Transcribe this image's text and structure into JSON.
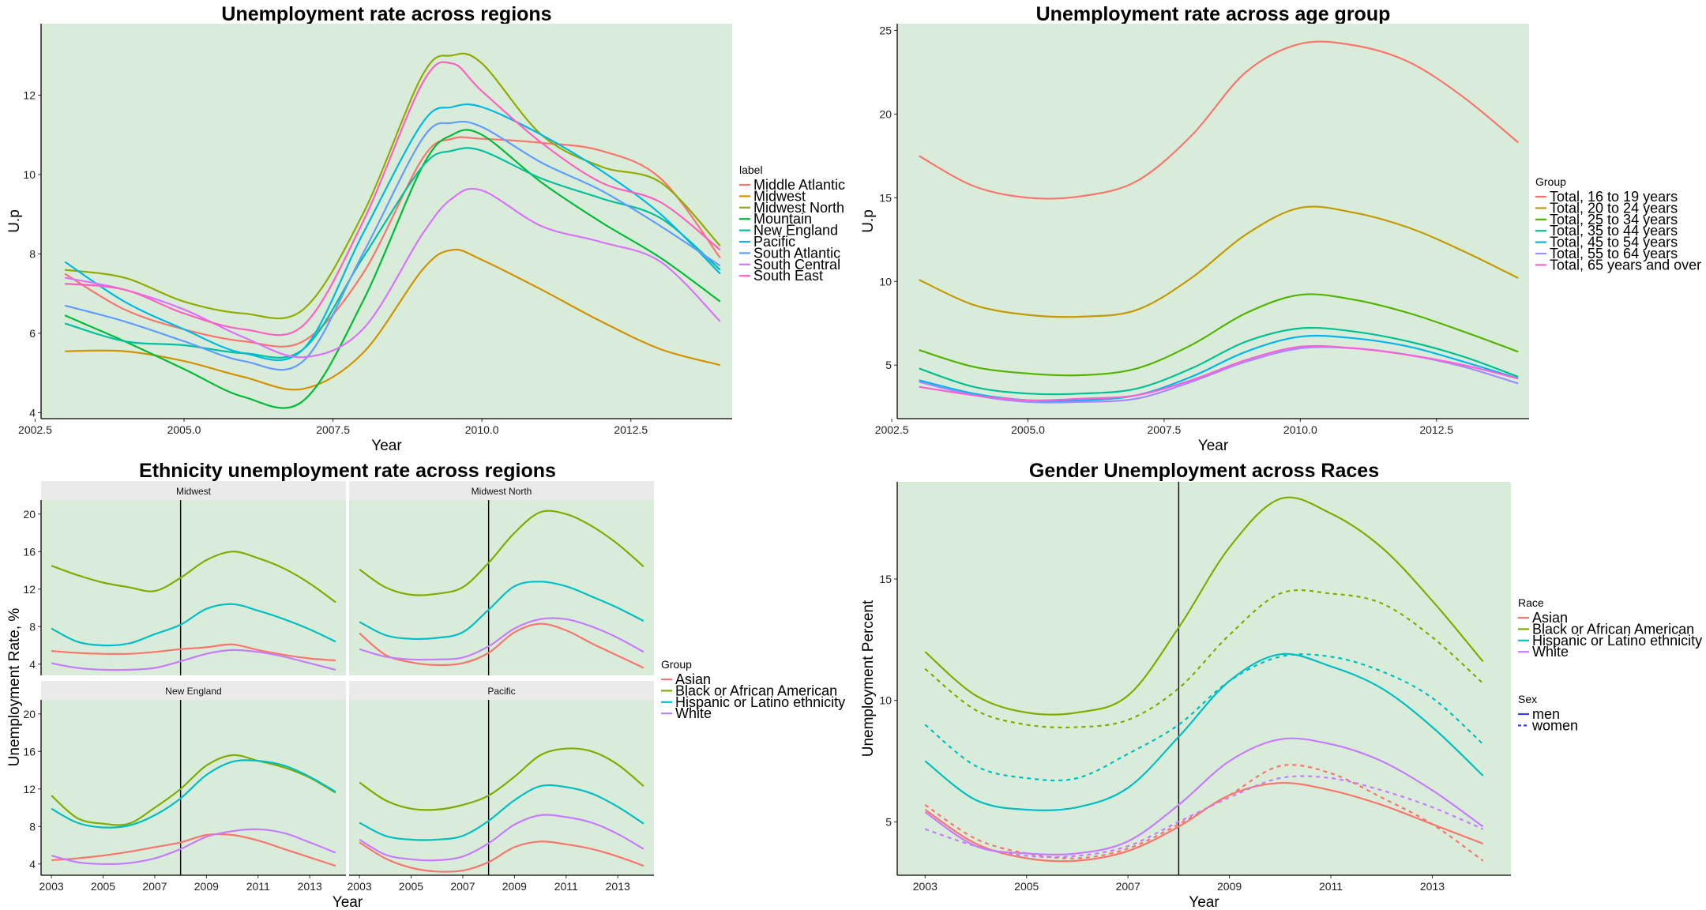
{
  "chart_data": [
    {
      "type": "line",
      "title": "Unemployment rate across regions",
      "xlabel": "Year",
      "ylabel": "U.p",
      "xlim": [
        2002.6,
        2014.2
      ],
      "ylim": [
        3.85,
        13.8
      ],
      "xticks": [
        "2002.5",
        "2005.0",
        "2007.5",
        "2010.0",
        "2012.5"
      ],
      "xtick_values": [
        2002.5,
        2005,
        2007.5,
        2010,
        2012.5
      ],
      "yticks": [
        "4",
        "6",
        "8",
        "10",
        "12"
      ],
      "ytick_values": [
        4,
        6,
        8,
        10,
        12
      ],
      "legend_title": "label",
      "legend_position": "right",
      "background": "#d9ecd9",
      "x": [
        2003,
        2004,
        2005,
        2006,
        2007,
        2008,
        2009,
        2009.5,
        2010,
        2011,
        2012,
        2013,
        2014
      ],
      "series": [
        {
          "name": "Middle Atlantic",
          "color": "#f8766d",
          "values": [
            7.5,
            6.6,
            6.1,
            5.8,
            5.8,
            7.5,
            10.4,
            10.9,
            10.9,
            10.8,
            10.6,
            9.9,
            7.9
          ]
        },
        {
          "name": "Midwest",
          "color": "#d39200",
          "values": [
            5.55,
            5.55,
            5.3,
            4.9,
            4.6,
            5.5,
            7.6,
            8.1,
            7.85,
            7.1,
            6.3,
            5.6,
            5.2
          ]
        },
        {
          "name": "Midwest North",
          "color": "#93aa00",
          "values": [
            7.6,
            7.4,
            6.8,
            6.5,
            6.6,
            9.0,
            12.5,
            13.0,
            12.8,
            11.0,
            10.2,
            9.8,
            8.2
          ]
        },
        {
          "name": "Mountain",
          "color": "#00ba38",
          "values": [
            6.45,
            5.8,
            5.1,
            4.4,
            4.3,
            6.8,
            10.2,
            11.0,
            11.0,
            9.8,
            8.8,
            7.9,
            6.8
          ]
        },
        {
          "name": "New England",
          "color": "#00c19f",
          "values": [
            6.25,
            5.8,
            5.7,
            5.5,
            5.6,
            7.9,
            10.2,
            10.6,
            10.6,
            9.9,
            9.4,
            8.9,
            7.6
          ]
        },
        {
          "name": "Pacific",
          "color": "#00b9e3",
          "values": [
            7.8,
            6.8,
            6.1,
            5.5,
            5.6,
            8.5,
            11.3,
            11.7,
            11.7,
            11.0,
            10.1,
            9.0,
            7.5
          ]
        },
        {
          "name": "South Atlantic",
          "color": "#619cff",
          "values": [
            6.7,
            6.3,
            5.8,
            5.3,
            5.3,
            8.0,
            10.9,
            11.3,
            11.2,
            10.3,
            9.6,
            8.7,
            7.7
          ]
        },
        {
          "name": "South Central",
          "color": "#db72fb",
          "values": [
            7.4,
            7.1,
            6.6,
            5.9,
            5.4,
            6.1,
            8.5,
            9.4,
            9.6,
            8.7,
            8.3,
            7.8,
            6.3
          ]
        },
        {
          "name": "South East",
          "color": "#ff61c3",
          "values": [
            7.25,
            7.1,
            6.5,
            6.1,
            6.2,
            8.8,
            12.3,
            12.8,
            12.1,
            10.8,
            9.8,
            9.3,
            8.1
          ]
        }
      ]
    },
    {
      "type": "line",
      "title": "Unemployment rate across age group",
      "xlabel": "Year",
      "ylabel": "U.p",
      "xlim": [
        2002.6,
        2014.2
      ],
      "ylim": [
        1.8,
        25.4
      ],
      "xticks": [
        "2002.5",
        "2005.0",
        "2007.5",
        "2010.0",
        "2012.5"
      ],
      "xtick_values": [
        2002.5,
        2005,
        2007.5,
        2010,
        2012.5
      ],
      "yticks": [
        "5",
        "10",
        "15",
        "20",
        "25"
      ],
      "ytick_values": [
        5,
        10,
        15,
        20,
        25
      ],
      "legend_title": "Group",
      "legend_position": "right",
      "background": "#d9ecd9",
      "x": [
        2003,
        2004,
        2005,
        2006,
        2007,
        2008,
        2009,
        2010,
        2011,
        2012,
        2013,
        2014
      ],
      "series": [
        {
          "name": "Total, 16 to 19 years",
          "color": "#f8766d",
          "values": [
            17.5,
            15.7,
            15.0,
            15.1,
            16.0,
            18.7,
            22.5,
            24.2,
            24.1,
            23.1,
            21.0,
            18.3
          ]
        },
        {
          "name": "Total, 20 to 24 years",
          "color": "#c49a00",
          "values": [
            10.1,
            8.6,
            8.0,
            7.9,
            8.3,
            10.2,
            12.8,
            14.4,
            14.1,
            13.2,
            11.8,
            10.2
          ]
        },
        {
          "name": "Total, 25 to 34 years",
          "color": "#53b400",
          "values": [
            5.9,
            4.9,
            4.5,
            4.4,
            4.8,
            6.2,
            8.1,
            9.2,
            8.9,
            8.1,
            7.0,
            5.8
          ]
        },
        {
          "name": "Total, 35 to 44 years",
          "color": "#00c094",
          "values": [
            4.8,
            3.7,
            3.3,
            3.3,
            3.6,
            4.8,
            6.4,
            7.2,
            7.0,
            6.4,
            5.5,
            4.3
          ]
        },
        {
          "name": "Total, 45 to 54 years",
          "color": "#00b6eb",
          "values": [
            4.1,
            3.3,
            2.9,
            2.9,
            3.2,
            4.3,
            5.8,
            6.7,
            6.6,
            6.1,
            5.2,
            4.2
          ]
        },
        {
          "name": "Total, 55 to 64 years",
          "color": "#a58aff",
          "values": [
            4.0,
            3.2,
            2.8,
            2.8,
            3.0,
            4.0,
            5.2,
            6.0,
            6.0,
            5.6,
            4.9,
            3.9
          ]
        },
        {
          "name": "Total, 65 years and over",
          "color": "#fb61d7",
          "values": [
            3.7,
            3.2,
            2.9,
            3.0,
            3.2,
            4.1,
            5.3,
            6.1,
            6.0,
            5.6,
            5.0,
            4.2
          ]
        }
      ]
    },
    {
      "type": "line",
      "title": "Ethnicity unemployment rate across regions",
      "xlabel": "Year",
      "ylabel": "Unemployment Rate, %",
      "xlim": [
        2002.6,
        2014.4
      ],
      "ylim": [
        2.8,
        21.5
      ],
      "xticks": [
        "2003",
        "2005",
        "2007",
        "2009",
        "2011",
        "2013"
      ],
      "xtick_values": [
        2003,
        2005,
        2007,
        2009,
        2011,
        2013
      ],
      "yticks": [
        "4",
        "8",
        "12",
        "16",
        "20"
      ],
      "ytick_values": [
        4,
        8,
        12,
        16,
        20
      ],
      "vline_x": 2008,
      "legend_title": "Group",
      "legend_position": "right",
      "background": "#d9ecd9",
      "x": [
        2003,
        2004,
        2005,
        2006,
        2007,
        2008,
        2009,
        2010,
        2011,
        2012,
        2013,
        2014
      ],
      "group_colors": {
        "Asian": "#f8766d",
        "Black or African American": "#7cae00",
        "Hispanic or Latino ethnicity": "#00bfc4",
        "White": "#c77cff"
      },
      "legend": [
        "Asian",
        "Black or African American",
        "Hispanic or Latino ethnicity",
        "White"
      ],
      "panels": [
        {
          "name": "Midwest",
          "series": [
            {
              "name": "Asian",
              "values": [
                5.4,
                5.2,
                5.1,
                5.1,
                5.3,
                5.6,
                5.8,
                6.1,
                5.5,
                5.0,
                4.6,
                4.4
              ]
            },
            {
              "name": "Black or African American",
              "values": [
                14.5,
                13.5,
                12.7,
                12.2,
                11.8,
                13.2,
                15.1,
                16.0,
                15.3,
                14.2,
                12.6,
                10.6
              ]
            },
            {
              "name": "Hispanic or Latino ethnicity",
              "values": [
                7.8,
                6.4,
                6.0,
                6.2,
                7.2,
                8.2,
                9.9,
                10.4,
                9.7,
                8.8,
                7.7,
                6.4
              ]
            },
            {
              "name": "White",
              "values": [
                4.1,
                3.6,
                3.4,
                3.4,
                3.6,
                4.3,
                5.1,
                5.5,
                5.3,
                4.8,
                4.1,
                3.4
              ]
            }
          ]
        },
        {
          "name": "Midwest North",
          "series": [
            {
              "name": "Asian",
              "values": [
                7.3,
                5.0,
                4.2,
                3.9,
                4.1,
                5.2,
                7.4,
                8.3,
                7.6,
                6.2,
                4.9,
                3.6
              ]
            },
            {
              "name": "Black or African American",
              "values": [
                14.1,
                12.2,
                11.4,
                11.5,
                12.2,
                14.8,
                18.0,
                20.2,
                20.0,
                18.7,
                16.8,
                14.4
              ]
            },
            {
              "name": "Hispanic or Latino ethnicity",
              "values": [
                8.5,
                7.1,
                6.7,
                6.8,
                7.4,
                9.8,
                12.3,
                12.8,
                12.3,
                11.2,
                10.0,
                8.6
              ]
            },
            {
              "name": "White",
              "values": [
                5.6,
                4.8,
                4.5,
                4.5,
                4.7,
                5.9,
                7.8,
                8.8,
                8.8,
                8.0,
                6.8,
                5.3
              ]
            }
          ]
        },
        {
          "name": "New England",
          "series": [
            {
              "name": "Asian",
              "values": [
                4.4,
                4.6,
                4.9,
                5.3,
                5.8,
                6.3,
                7.1,
                7.1,
                6.5,
                5.6,
                4.7,
                3.8
              ]
            },
            {
              "name": "Black or African American",
              "values": [
                11.3,
                8.9,
                8.3,
                8.3,
                10.0,
                12.0,
                14.5,
                15.6,
                15.0,
                14.3,
                13.2,
                11.6
              ]
            },
            {
              "name": "Hispanic or Latino ethnicity",
              "values": [
                9.9,
                8.4,
                7.9,
                8.1,
                9.2,
                11.0,
                13.5,
                14.9,
                15.0,
                14.5,
                13.3,
                11.7
              ]
            },
            {
              "name": "White",
              "values": [
                4.9,
                4.2,
                4.0,
                4.1,
                4.6,
                5.6,
                6.9,
                7.5,
                7.7,
                7.3,
                6.3,
                5.2
              ]
            }
          ]
        },
        {
          "name": "Pacific",
          "series": [
            {
              "name": "Asian",
              "values": [
                6.3,
                4.6,
                3.6,
                3.2,
                3.3,
                4.2,
                5.8,
                6.4,
                6.1,
                5.6,
                4.8,
                3.8
              ]
            },
            {
              "name": "Black or African American",
              "values": [
                12.7,
                10.8,
                9.9,
                9.8,
                10.3,
                11.3,
                13.3,
                15.6,
                16.3,
                16.0,
                14.6,
                12.3
              ]
            },
            {
              "name": "Hispanic or Latino ethnicity",
              "values": [
                8.4,
                7.0,
                6.6,
                6.6,
                7.0,
                8.6,
                10.8,
                12.3,
                12.2,
                11.5,
                10.1,
                8.3
              ]
            },
            {
              "name": "White",
              "values": [
                6.6,
                5.0,
                4.5,
                4.4,
                4.8,
                6.2,
                8.2,
                9.2,
                9.0,
                8.4,
                7.2,
                5.6
              ]
            }
          ]
        }
      ]
    },
    {
      "type": "line",
      "title": "Gender Unemployment across Races",
      "xlabel": "Year",
      "ylabel": "Unemployment Percent",
      "xlim": [
        2002.45,
        2014.55
      ],
      "ylim": [
        2.8,
        19.0
      ],
      "xticks": [
        "2003",
        "2005",
        "2007",
        "2009",
        "2011",
        "2013"
      ],
      "xtick_values": [
        2003,
        2005,
        2007,
        2009,
        2011,
        2013
      ],
      "yticks": [
        "5",
        "10",
        "15"
      ],
      "ytick_values": [
        5,
        10,
        15
      ],
      "vline_x": 2008,
      "legend_title": "Race",
      "legend2_title": "Sex",
      "legend2": [
        "men",
        "women"
      ],
      "legend_position": "right",
      "background": "#d9ecd9",
      "x": [
        2003,
        2004,
        2005,
        2006,
        2007,
        2008,
        2009,
        2010,
        2011,
        2012,
        2013,
        2014
      ],
      "series": [
        {
          "name": "Asian",
          "sex": "men",
          "color": "#f8766d",
          "values": [
            5.5,
            4.1,
            3.5,
            3.4,
            3.8,
            4.8,
            6.1,
            6.6,
            6.3,
            5.7,
            4.9,
            4.1
          ]
        },
        {
          "name": "Asian",
          "sex": "women",
          "color": "#f8766d",
          "values": [
            5.7,
            4.3,
            3.7,
            3.5,
            3.9,
            4.9,
            6.1,
            7.3,
            7.0,
            6.0,
            4.9,
            3.4
          ]
        },
        {
          "name": "Black or African American",
          "sex": "men",
          "color": "#7cae00",
          "values": [
            12.0,
            10.2,
            9.5,
            9.5,
            10.2,
            13.0,
            16.3,
            18.3,
            17.7,
            16.3,
            14.1,
            11.6
          ]
        },
        {
          "name": "Black or African American",
          "sex": "women",
          "color": "#7cae00",
          "values": [
            11.3,
            9.6,
            9.0,
            8.9,
            9.2,
            10.5,
            12.7,
            14.4,
            14.4,
            14.0,
            12.6,
            10.7
          ]
        },
        {
          "name": "Hispanic or Latino ethnicity",
          "sex": "men",
          "color": "#00bfc4",
          "values": [
            7.5,
            5.9,
            5.5,
            5.6,
            6.4,
            8.5,
            10.8,
            11.9,
            11.4,
            10.5,
            8.9,
            6.9
          ]
        },
        {
          "name": "Hispanic or Latino ethnicity",
          "sex": "women",
          "color": "#00bfc4",
          "values": [
            9.0,
            7.3,
            6.8,
            6.8,
            7.8,
            9.0,
            10.8,
            11.8,
            11.8,
            11.2,
            10.1,
            8.2
          ]
        },
        {
          "name": "White",
          "sex": "men",
          "color": "#c77cff",
          "values": [
            5.4,
            4.0,
            3.7,
            3.7,
            4.2,
            5.7,
            7.5,
            8.4,
            8.2,
            7.5,
            6.3,
            4.8
          ]
        },
        {
          "name": "White",
          "sex": "women",
          "color": "#c77cff",
          "values": [
            4.7,
            4.0,
            3.6,
            3.6,
            4.0,
            5.0,
            6.0,
            6.8,
            6.8,
            6.3,
            5.6,
            4.7
          ]
        }
      ]
    }
  ]
}
